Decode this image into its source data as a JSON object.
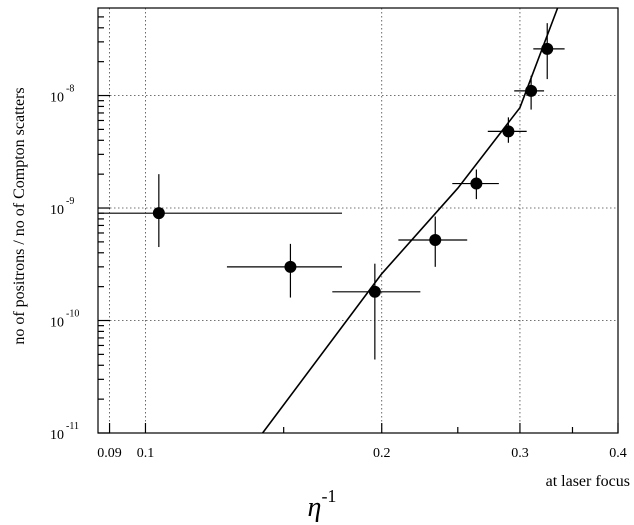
{
  "chart_data": {
    "type": "scatter",
    "xlabel": "η",
    "xlabel_superscript": "-1",
    "xlabel_note": "at laser focus",
    "ylabel": "no of positrons / no of Compton scatters",
    "xscale": "log",
    "yscale": "log",
    "xlim": [
      0.087,
      0.4
    ],
    "ylim": [
      1e-11,
      6e-08
    ],
    "grid": true,
    "x_ticks": [
      {
        "value": 0.09,
        "label": "0.09"
      },
      {
        "value": 0.1,
        "label": "0.1"
      },
      {
        "value": 0.2,
        "label": "0.2"
      },
      {
        "value": 0.3,
        "label": "0.3"
      },
      {
        "value": 0.4,
        "label": "0.4"
      }
    ],
    "y_ticks": [
      {
        "value": 1e-11,
        "base": "10",
        "exp": "-11"
      },
      {
        "value": 1e-10,
        "base": "10",
        "exp": "-10"
      },
      {
        "value": 1e-09,
        "base": "10",
        "exp": "-9"
      },
      {
        "value": 1e-08,
        "base": "10",
        "exp": "-8"
      }
    ],
    "points": [
      {
        "x": 0.104,
        "y": 9e-10,
        "xerr": [
          0.087,
          0.178
        ],
        "yerr": [
          4.5e-10,
          2e-09
        ]
      },
      {
        "x": 0.153,
        "y": 3e-10,
        "xerr": [
          0.127,
          0.178
        ],
        "yerr": [
          1.6e-10,
          4.8e-10
        ]
      },
      {
        "x": 0.196,
        "y": 1.8e-10,
        "xerr": [
          0.173,
          0.224
        ],
        "yerr": [
          4.5e-11,
          3.2e-10
        ]
      },
      {
        "x": 0.234,
        "y": 5.2e-10,
        "xerr": [
          0.21,
          0.257
        ],
        "yerr": [
          3e-10,
          8.4e-10
        ]
      },
      {
        "x": 0.264,
        "y": 1.65e-09,
        "xerr": [
          0.246,
          0.282
        ],
        "yerr": [
          1.2e-09,
          2.2e-09
        ]
      },
      {
        "x": 0.29,
        "y": 4.8e-09,
        "xerr": [
          0.273,
          0.306
        ],
        "yerr": [
          3.8e-09,
          6.4e-09
        ]
      },
      {
        "x": 0.31,
        "y": 1.1e-08,
        "xerr": [
          0.295,
          0.322
        ],
        "yerr": [
          7.5e-09,
          1.5e-08
        ]
      },
      {
        "x": 0.325,
        "y": 2.6e-08,
        "xerr": [
          0.312,
          0.342
        ],
        "yerr": [
          1.4e-08,
          4.4e-08
        ]
      }
    ],
    "fit_line": {
      "x": [
        0.141,
        0.2,
        0.25,
        0.3,
        0.335
      ],
      "y": [
        1e-11,
        2.6e-10,
        1.5e-09,
        7.8e-09,
        6e-08
      ]
    }
  }
}
